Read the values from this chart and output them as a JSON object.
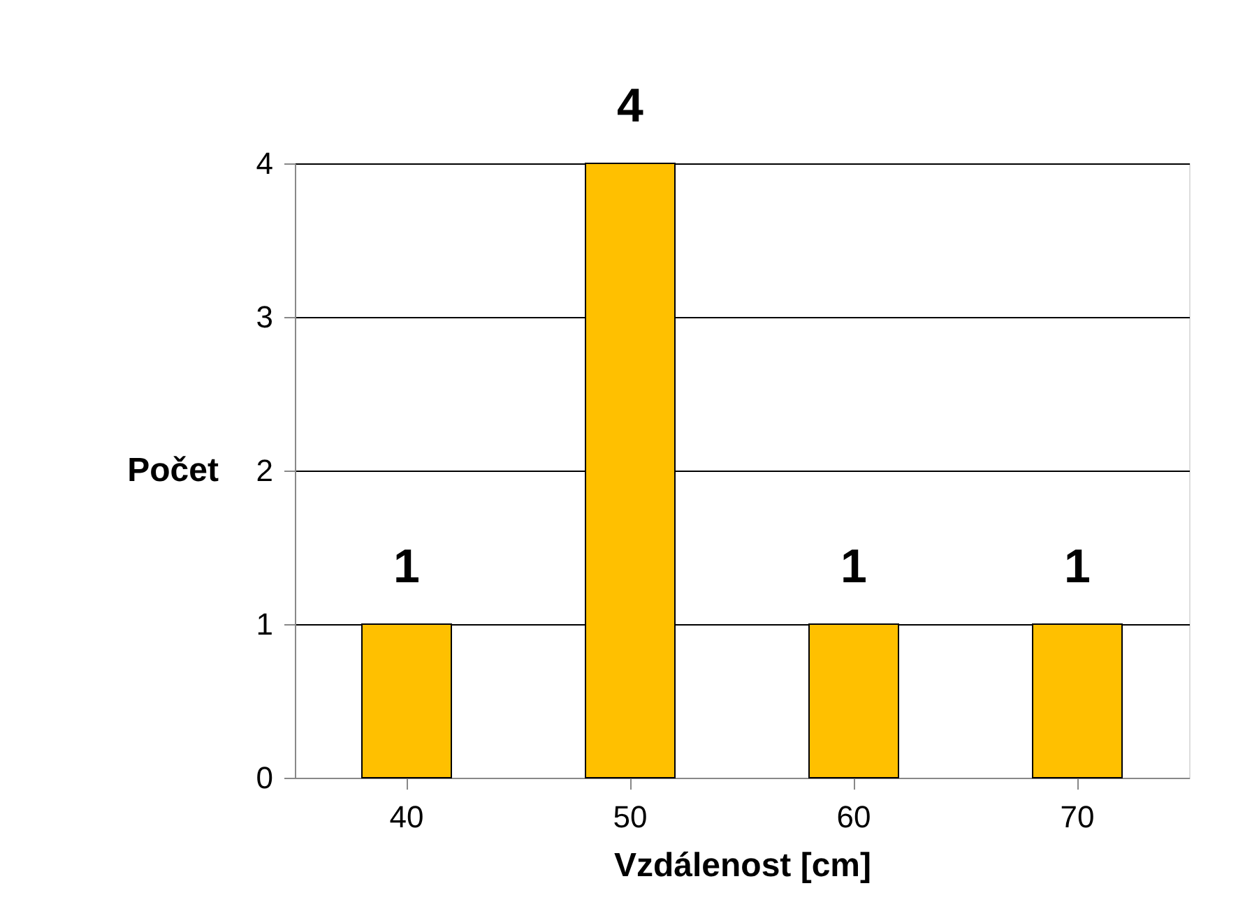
{
  "chart_data": {
    "type": "bar",
    "xlabel": "Vzdálenost [cm]",
    "ylabel": "Počet",
    "categories": [
      "40",
      "50",
      "60",
      "70"
    ],
    "values": [
      1,
      4,
      1,
      1
    ],
    "color": "#ffc000",
    "ylim": [
      0,
      4
    ],
    "yticks": [
      0,
      1,
      2,
      3,
      4
    ],
    "grid": "y",
    "data_labels": true
  }
}
